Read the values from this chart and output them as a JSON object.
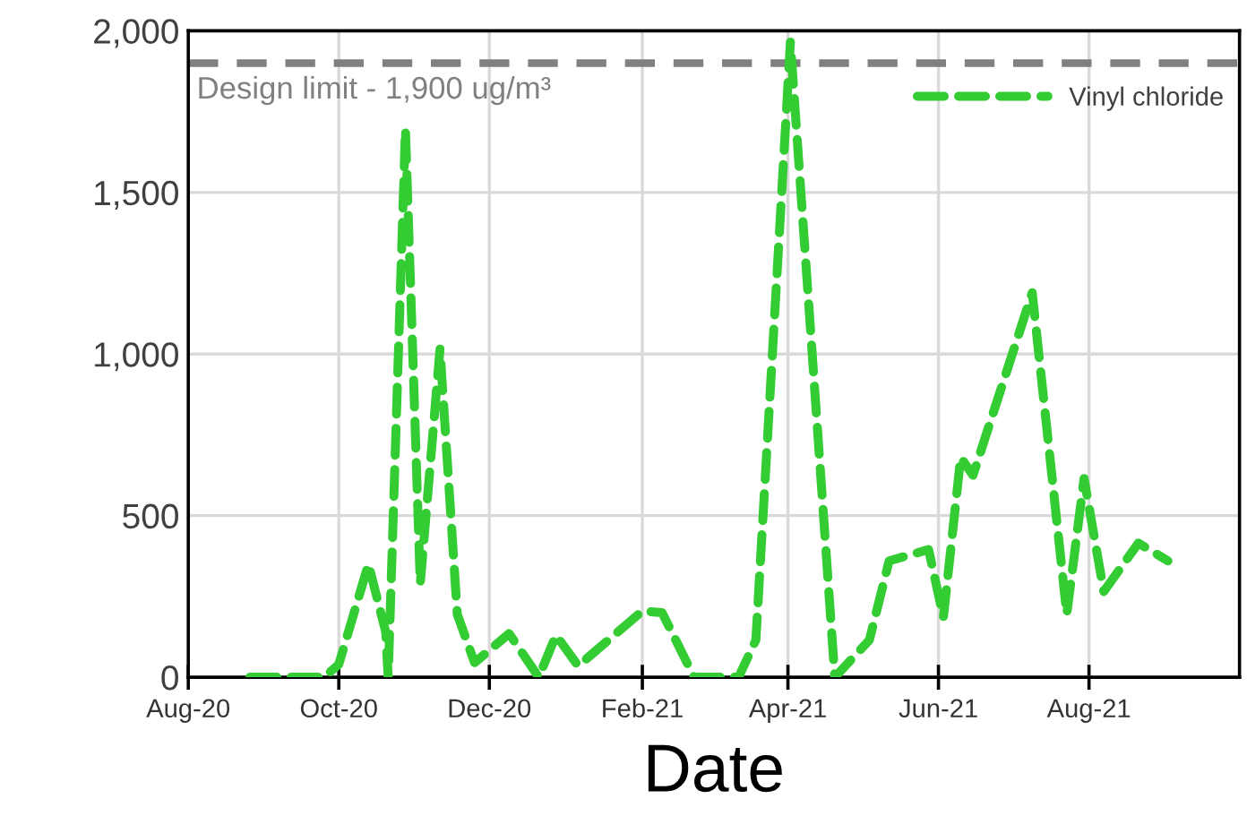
{
  "chart_data": {
    "type": "line",
    "xlabel": "Date",
    "x": [
      "2020-08-26",
      "2020-09-25",
      "2020-10-01",
      "2020-10-13",
      "2020-10-20",
      "2020-10-21",
      "2020-10-28",
      "2020-11-03",
      "2020-11-11",
      "2020-11-18",
      "2020-11-25",
      "2020-12-09",
      "2020-12-21",
      "2020-12-28",
      "2021-01-06",
      "2021-02-01",
      "2021-02-09",
      "2021-02-22",
      "2021-03-12",
      "2021-03-19",
      "2021-04-02",
      "2021-04-20",
      "2021-05-04",
      "2021-05-12",
      "2021-05-28",
      "2021-06-03",
      "2021-06-10",
      "2021-06-15",
      "2021-07-09",
      "2021-07-23",
      "2021-07-30",
      "2021-08-07",
      "2021-08-21",
      "2021-09-02"
    ],
    "series": [
      {
        "name": "Vinyl chloride",
        "color": "#33cc33",
        "values": [
          0,
          0,
          40,
          350,
          140,
          0,
          1695,
          290,
          1015,
          195,
          45,
          135,
          0,
          130,
          35,
          205,
          200,
          0,
          0,
          115,
          1965,
          0,
          115,
          360,
          395,
          185,
          680,
          625,
          1190,
          195,
          615,
          265,
          415,
          360
        ]
      }
    ],
    "xlim": [
      "2020-08-01",
      "2021-10-01"
    ],
    "xticks": [
      {
        "value": "2020-08-01",
        "label": "Aug-20"
      },
      {
        "value": "2020-10-01",
        "label": "Oct-20"
      },
      {
        "value": "2020-12-01",
        "label": "Dec-20"
      },
      {
        "value": "2021-02-01",
        "label": "Feb-21"
      },
      {
        "value": "2021-04-01",
        "label": "Apr-21"
      },
      {
        "value": "2021-06-01",
        "label": "Jun-21"
      },
      {
        "value": "2021-08-01",
        "label": "Aug-21"
      }
    ],
    "ylim": [
      0,
      2000
    ],
    "yticks": [
      {
        "value": 0,
        "label": "0"
      },
      {
        "value": 500,
        "label": "500"
      },
      {
        "value": 1000,
        "label": "1,000"
      },
      {
        "value": 1500,
        "label": "1,500"
      },
      {
        "value": 2000,
        "label": "2,000"
      }
    ],
    "ref_lines": [
      {
        "axis": "y",
        "value": 1900,
        "label": "Design limit - 1,900 ug/m³",
        "color": "#808080",
        "line_style": "dashed"
      }
    ],
    "grid": true,
    "legend": "top right",
    "line_style": "dashed",
    "marker": "none"
  }
}
